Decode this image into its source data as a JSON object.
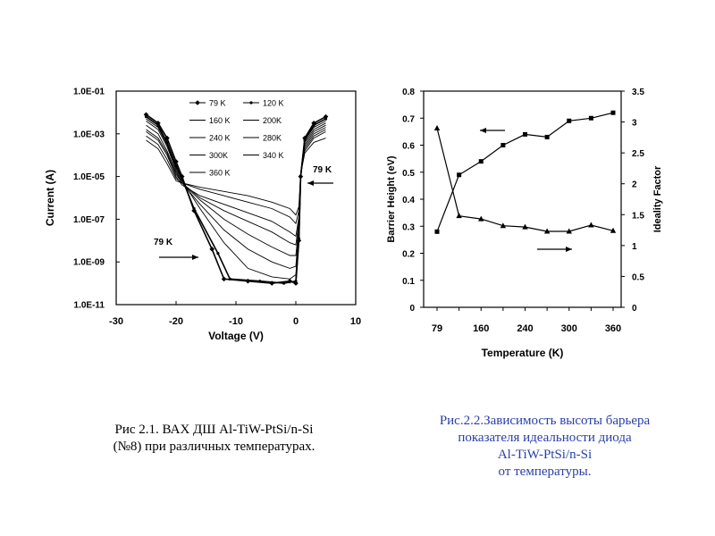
{
  "chart_data": [
    {
      "type": "line",
      "xlabel": "Voltage (V)",
      "ylabel": "Current (A)",
      "xlim": [
        -30,
        10
      ],
      "ylim_log": [
        -11,
        -1
      ],
      "x_ticks": [
        -30,
        -20,
        -10,
        0,
        10
      ],
      "y_ticks": [
        "1.0E-01",
        "1.0E-03",
        "1.0E-05",
        "1.0E-07",
        "1.0E-09",
        "1.0E-11"
      ],
      "y_tick_exponents": [
        -1,
        -3,
        -5,
        -7,
        -9,
        -11
      ],
      "legend": [
        "79 K",
        "120 K",
        "160 K",
        "200K",
        "240 K",
        "280K",
        "300K",
        "340 K",
        "360 K"
      ],
      "legend_position": "top-right",
      "annotations": [
        {
          "text": "79 K",
          "x": 4,
          "log_y": -4.7
        },
        {
          "text": "79 K",
          "x": -21.5,
          "log_y": -8.1
        }
      ],
      "series": [
        {
          "name": "79 K",
          "points": [
            [
              -25,
              -2.1
            ],
            [
              -23,
              -2.5
            ],
            [
              -21.5,
              -3.2
            ],
            [
              -20,
              -4.3
            ],
            [
              -19,
              -5.0
            ],
            [
              -17,
              -6.6
            ],
            [
              -14,
              -8.4
            ],
            [
              -12,
              -9.8
            ],
            [
              -8,
              -9.9
            ],
            [
              -4,
              -10.0
            ],
            [
              -1,
              -9.9
            ],
            [
              0,
              -10.0
            ],
            [
              0.5,
              -8.0
            ],
            [
              0.8,
              -5.0
            ],
            [
              1.5,
              -3.2
            ],
            [
              3,
              -2.5
            ],
            [
              5,
              -2.2
            ]
          ]
        },
        {
          "name": "120 K",
          "points": [
            [
              -25,
              -2.2
            ],
            [
              -23,
              -2.6
            ],
            [
              -21.5,
              -3.4
            ],
            [
              -20,
              -4.5
            ],
            [
              -19,
              -5.1
            ],
            [
              -17,
              -6.5
            ],
            [
              -13,
              -8.6
            ],
            [
              -11,
              -9.8
            ],
            [
              -6,
              -9.9
            ],
            [
              -2,
              -10.0
            ],
            [
              0,
              -9.9
            ],
            [
              0.5,
              -7.9
            ],
            [
              0.8,
              -5.0
            ],
            [
              1.5,
              -3.3
            ],
            [
              3,
              -2.6
            ],
            [
              5,
              -2.3
            ]
          ]
        },
        {
          "name": "160 K",
          "points": [
            [
              -25,
              -2.3
            ],
            [
              -23,
              -2.7
            ],
            [
              -21.5,
              -3.5
            ],
            [
              -20,
              -4.6
            ],
            [
              -19,
              -5.2
            ],
            [
              -16,
              -6.5
            ],
            [
              -12,
              -8.1
            ],
            [
              -8,
              -9.3
            ],
            [
              -4,
              -9.7
            ],
            [
              -1,
              -9.8
            ],
            [
              0,
              -9.6
            ],
            [
              0.5,
              -7.7
            ],
            [
              0.8,
              -4.9
            ],
            [
              1.5,
              -3.3
            ],
            [
              3,
              -2.7
            ],
            [
              5,
              -2.4
            ]
          ]
        },
        {
          "name": "200K",
          "points": [
            [
              -25,
              -2.4
            ],
            [
              -23,
              -2.8
            ],
            [
              -21.5,
              -3.6
            ],
            [
              -20,
              -4.7
            ],
            [
              -19,
              -5.3
            ],
            [
              -16,
              -6.3
            ],
            [
              -12,
              -7.5
            ],
            [
              -8,
              -8.4
            ],
            [
              -4,
              -9.0
            ],
            [
              -1,
              -9.3
            ],
            [
              0,
              -9.2
            ],
            [
              0.5,
              -7.5
            ],
            [
              0.8,
              -4.9
            ],
            [
              1.5,
              -3.4
            ],
            [
              3,
              -2.8
            ],
            [
              5,
              -2.5
            ]
          ]
        },
        {
          "name": "240 K",
          "points": [
            [
              -25,
              -2.6
            ],
            [
              -23,
              -3.0
            ],
            [
              -21.5,
              -3.8
            ],
            [
              -20,
              -4.8
            ],
            [
              -19,
              -5.3
            ],
            [
              -16,
              -6.1
            ],
            [
              -12,
              -7.0
            ],
            [
              -8,
              -7.7
            ],
            [
              -4,
              -8.3
            ],
            [
              -1,
              -8.7
            ],
            [
              0,
              -8.7
            ],
            [
              0.5,
              -7.3
            ],
            [
              0.8,
              -4.9
            ],
            [
              1.5,
              -3.5
            ],
            [
              3,
              -2.9
            ],
            [
              5,
              -2.6
            ]
          ]
        },
        {
          "name": "280K",
          "points": [
            [
              -25,
              -2.8
            ],
            [
              -23,
              -3.2
            ],
            [
              -21.5,
              -3.9
            ],
            [
              -20,
              -4.9
            ],
            [
              -19,
              -5.3
            ],
            [
              -16,
              -6.0
            ],
            [
              -12,
              -6.6
            ],
            [
              -8,
              -7.1
            ],
            [
              -4,
              -7.6
            ],
            [
              -1,
              -8.1
            ],
            [
              0,
              -8.2
            ],
            [
              0.5,
              -7.1
            ],
            [
              0.8,
              -4.9
            ],
            [
              1.5,
              -3.6
            ],
            [
              3,
              -3.0
            ],
            [
              5,
              -2.7
            ]
          ]
        },
        {
          "name": "300K",
          "points": [
            [
              -25,
              -2.9
            ],
            [
              -23,
              -3.3
            ],
            [
              -21.5,
              -4.0
            ],
            [
              -20,
              -5.0
            ],
            [
              -19,
              -5.4
            ],
            [
              -16,
              -5.9
            ],
            [
              -12,
              -6.3
            ],
            [
              -8,
              -6.7
            ],
            [
              -4,
              -7.1
            ],
            [
              -1,
              -7.6
            ],
            [
              0,
              -7.8
            ],
            [
              0.5,
              -6.9
            ],
            [
              0.8,
              -4.9
            ],
            [
              1.5,
              -3.7
            ],
            [
              3,
              -3.1
            ],
            [
              5,
              -2.8
            ]
          ]
        },
        {
          "name": "340 K",
          "points": [
            [
              -25,
              -3.1
            ],
            [
              -23,
              -3.5
            ],
            [
              -21.5,
              -4.2
            ],
            [
              -20,
              -5.1
            ],
            [
              -19,
              -5.3
            ],
            [
              -16,
              -5.6
            ],
            [
              -12,
              -5.9
            ],
            [
              -8,
              -6.2
            ],
            [
              -4,
              -6.5
            ],
            [
              -1,
              -6.9
            ],
            [
              0,
              -7.2
            ],
            [
              0.5,
              -6.6
            ],
            [
              0.8,
              -4.9
            ],
            [
              1.5,
              -3.8
            ],
            [
              3,
              -3.2
            ],
            [
              5,
              -2.9
            ]
          ]
        },
        {
          "name": "360 K",
          "points": [
            [
              -25,
              -3.3
            ],
            [
              -23,
              -3.7
            ],
            [
              -21.5,
              -4.4
            ],
            [
              -20,
              -5.2
            ],
            [
              -19,
              -5.3
            ],
            [
              -16,
              -5.5
            ],
            [
              -12,
              -5.7
            ],
            [
              -8,
              -5.9
            ],
            [
              -4,
              -6.2
            ],
            [
              -1,
              -6.5
            ],
            [
              0,
              -6.8
            ],
            [
              0.5,
              -6.4
            ],
            [
              0.8,
              -4.9
            ],
            [
              1.5,
              -3.9
            ],
            [
              3,
              -3.4
            ],
            [
              5,
              -3.2
            ]
          ]
        }
      ]
    },
    {
      "type": "line",
      "xlabel": "Temperature (K)",
      "ylabel_left": "Barrier Height (eV)",
      "ylabel_right": "Ideality Factor",
      "x_ticks": [
        79,
        120,
        160,
        200,
        240,
        280,
        300,
        340,
        360
      ],
      "x_tick_labels": [
        "79",
        "160",
        "240",
        "300",
        "360"
      ],
      "x_tick_label_indices": [
        0,
        2,
        4,
        6,
        8
      ],
      "y_left_lim": [
        0,
        0.8
      ],
      "y_left_ticks": [
        "0",
        "0.1",
        "0.2",
        "0.3",
        "0.4",
        "0.5",
        "0.6",
        "0.7",
        "0.8"
      ],
      "y_right_lim": [
        0,
        3.5
      ],
      "y_right_ticks": [
        "0",
        "0.5",
        "1",
        "1.5",
        "2",
        "2.5",
        "3",
        "3.5"
      ],
      "series": [
        {
          "axis": "left",
          "marker": "square",
          "x": [
            79,
            120,
            160,
            200,
            240,
            280,
            300,
            340,
            360
          ],
          "values": [
            0.28,
            0.49,
            0.54,
            0.6,
            0.64,
            0.63,
            0.69,
            0.7,
            0.72
          ]
        },
        {
          "axis": "right",
          "marker": "triangle",
          "x": [
            79,
            120,
            160,
            200,
            240,
            280,
            300,
            340,
            360
          ],
          "values": [
            2.9,
            1.48,
            1.43,
            1.32,
            1.3,
            1.23,
            1.23,
            1.33,
            1.24
          ]
        }
      ],
      "arrows": [
        {
          "direction": "left",
          "points_to": "left-axis"
        },
        {
          "direction": "right",
          "points_to": "right-axis"
        }
      ]
    }
  ],
  "captions": {
    "left_line1": "Рис 2.1. ВАХ ДШ Al-TiW-PtSi/n-Si",
    "left_line2": "(№8) при различных температурах.",
    "right_line1": "Рис.2.2.Зависимость высоты барьера",
    "right_line2": "показателя идеальности диода",
    "right_line3": "Al-TiW-PtSi/n-Si",
    "right_line4": "от температуры."
  },
  "colors": {
    "text": "#000000",
    "caption_right": "#2a3fa8",
    "plot_lines": "#000000"
  }
}
